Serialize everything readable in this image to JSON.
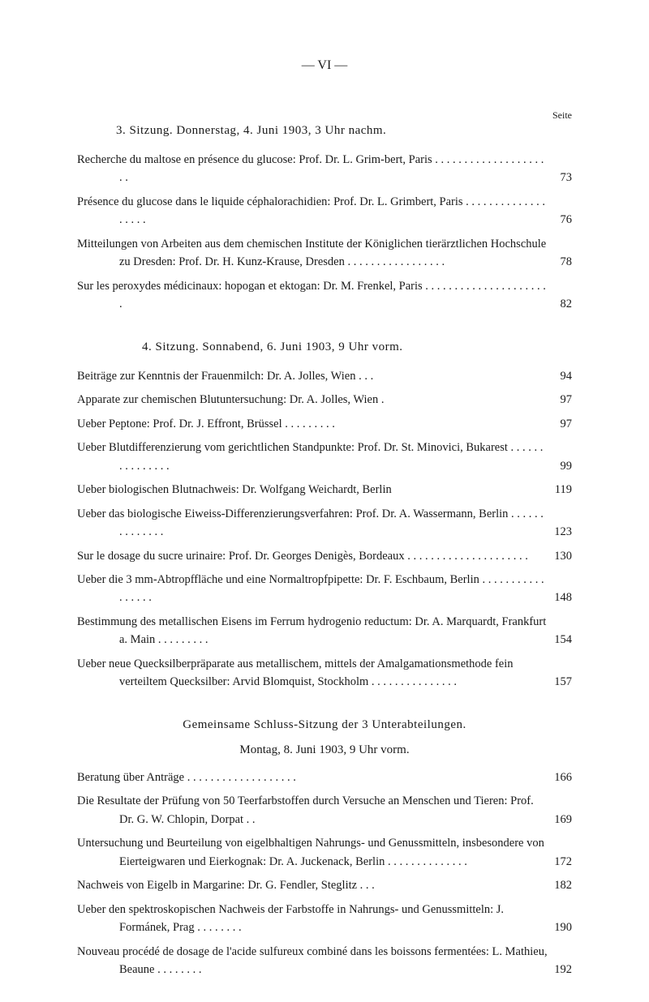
{
  "page_header": "—   VI   —",
  "seite_label": "Seite",
  "section3": {
    "title": "3. Sitzung.  Donnerstag,  4. Juni 1903,  3 Uhr nachm.",
    "entries": [
      {
        "text": "Recherche du maltose en présence du glucose: Prof. Dr. L. Grim-bert, Paris . . . . . . . . . . . . . . . . . . . . .",
        "page": "73"
      },
      {
        "text": "Présence du glucose dans le liquide céphalorachidien: Prof. Dr. L. Grimbert, Paris . . . . . . . . . . . . . . . . . . .",
        "page": "76"
      },
      {
        "text": "Mitteilungen von Arbeiten aus dem chemischen Institute der Königlichen tierärztlichen Hochschule zu Dresden: Prof. Dr. H. Kunz-Krause, Dresden  . . . . . . . . . . . . . . . . .",
        "page": "78"
      },
      {
        "text": "Sur les peroxydes médicinaux: hopogan et ektogan: Dr. M. Frenkel, Paris  . . . . . . . . . . . . . . . . . . . . . .",
        "page": "82"
      }
    ]
  },
  "section4": {
    "title": "4. Sitzung.  Sonnabend, 6. Juni 1903, 9 Uhr vorm.",
    "entries": [
      {
        "text": "Beiträge zur Kenntnis der Frauenmilch: Dr. A. Jolles, Wien . . .",
        "page": "94"
      },
      {
        "text": "Apparate zur chemischen Blutuntersuchung: Dr. A. Jolles, Wien  .",
        "page": "97"
      },
      {
        "text": "Ueber Peptone: Prof. Dr. J. Effront, Brüssel . . . . . . . . .",
        "page": "97"
      },
      {
        "text": "Ueber Blutdifferenzierung vom gerichtlichen Standpunkte: Prof. Dr. St. Minovici, Bukarest . . . . . . . . . . . . . . .",
        "page": "99"
      },
      {
        "text": "Ueber biologischen Blutnachweis: Dr. Wolfgang Weichardt, Berlin",
        "page": "119"
      },
      {
        "text": "Ueber das biologische Eiweiss-Differenzierungsverfahren: Prof. Dr. A. Wassermann, Berlin  . . . . . . . . . . . . . .",
        "page": "123"
      },
      {
        "text": "Sur le dosage du sucre urinaire: Prof. Dr. Georges Denigès, Bordeaux . . . . . . . . . . . . . . . . . . . . .",
        "page": "130"
      },
      {
        "text": "Ueber die 3 mm-Abtropffläche und eine Normaltropfpipette: Dr. F. Eschbaum, Berlin . . . . . . . . . . . . . . . . .",
        "page": "148"
      },
      {
        "text": "Bestimmung des metallischen Eisens im Ferrum hydrogenio reductum: Dr. A. Marquardt, Frankfurt a. Main  . . . . . . . . .",
        "page": "154"
      },
      {
        "text": "Ueber neue Quecksilberpräparate aus metallischem, mittels der Amalgamationsmethode fein verteiltem Quecksilber: Arvid Blomquist, Stockholm  . . . . . . . . . . . . . . .",
        "page": "157"
      }
    ]
  },
  "joint_section": {
    "title": "Gemeinsame Schluss-Sitzung der 3 Unterabteilungen.",
    "subtitle": "Montag, 8. Juni 1903, 9 Uhr vorm.",
    "entries": [
      {
        "text": "Beratung über Anträge . . . . . . . . . . . . . . . . . . .",
        "page": "166"
      },
      {
        "text": "Die Resultate der Prüfung von 50 Teerfarbstoffen durch Versuche an Menschen und Tieren: Prof. Dr. G. W. Chlopin, Dorpat  . .",
        "page": "169"
      },
      {
        "text": "Untersuchung und Beurteilung von eigelbhaltigen Nahrungs- und Genussmitteln, insbesondere von Eierteigwaren und Eierkognak: Dr. A. Juckenack, Berlin . . . . . . . . . . . . . .",
        "page": "172"
      },
      {
        "text": "Nachweis von Eigelb in Margarine: Dr. G. Fendler, Steglitz . . .",
        "page": "182"
      },
      {
        "text": "Ueber den spektroskopischen Nachweis der Farbstoffe in Nahrungs- und Genussmitteln: J. Formánek, Prag  . . . . . . . .",
        "page": "190"
      },
      {
        "text": "Nouveau procédé de dosage de l'acide sulfureux combiné dans les boissons fermentées: L. Mathieu, Beaune . . . . . . . .",
        "page": "192"
      }
    ]
  }
}
